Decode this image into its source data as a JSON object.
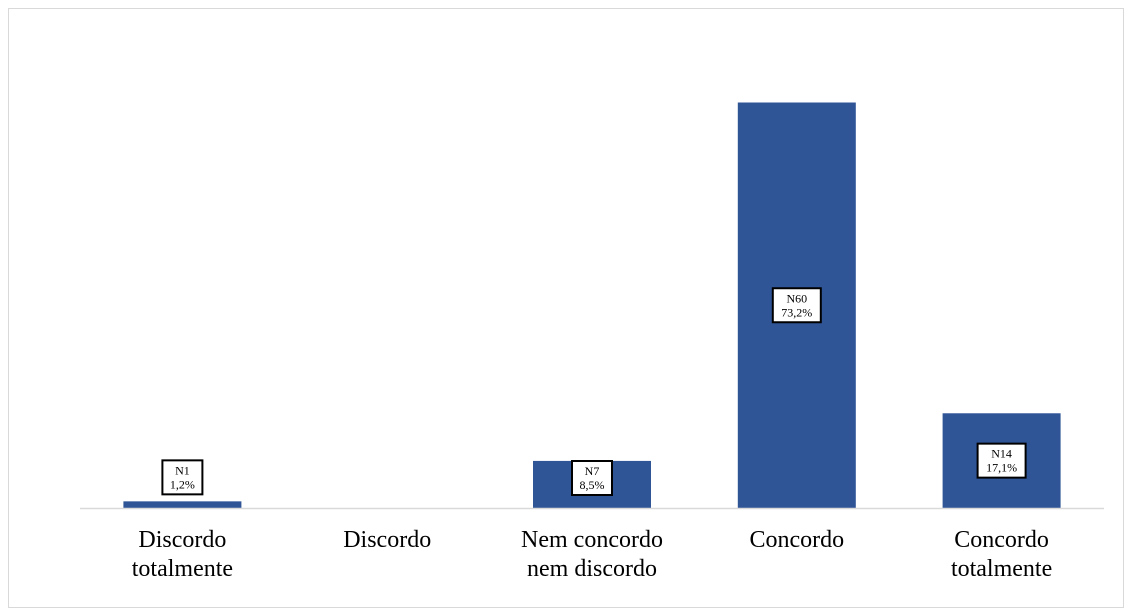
{
  "chart_data": {
    "type": "bar",
    "categories": [
      [
        "Discordo",
        "totalmente"
      ],
      [
        "Discordo"
      ],
      [
        "Nem concordo",
        "nem discordo"
      ],
      [
        "Concordo"
      ],
      [
        "Concordo",
        "totalmente"
      ]
    ],
    "values": [
      1.2,
      0,
      8.5,
      73.2,
      17.1
    ],
    "counts": [
      1,
      0,
      7,
      60,
      14
    ],
    "data_labels": [
      [
        "N1",
        "1,2%"
      ],
      null,
      [
        "N7",
        "8,5%"
      ],
      [
        "N60",
        "73,2%"
      ],
      [
        "N14",
        "17,1%"
      ]
    ],
    "ylim": [
      0,
      82
    ],
    "grid": false,
    "legend": "none",
    "bar_color": "#2F5597",
    "axis_color": "#d9d9d9",
    "title": "",
    "xlabel": "",
    "ylabel": ""
  }
}
